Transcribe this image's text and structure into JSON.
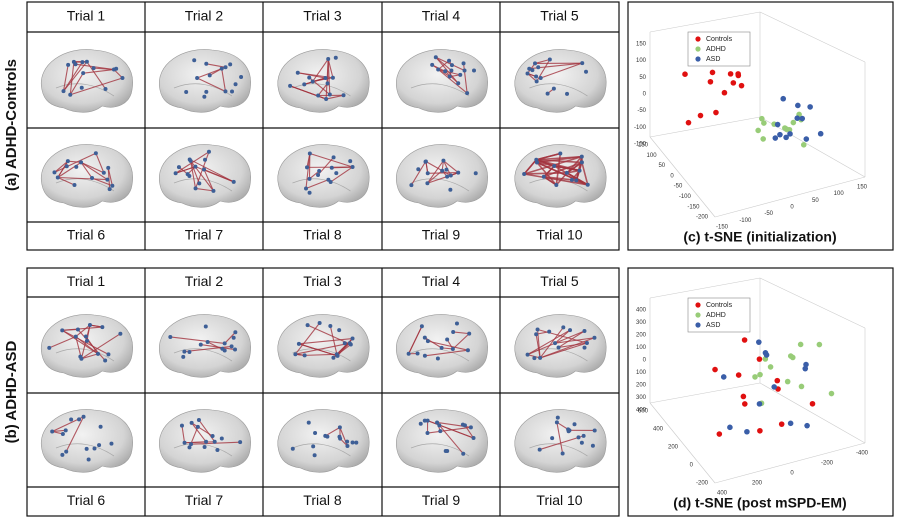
{
  "panels": [
    {
      "label": "(a) ADHD-Controls",
      "top_trials": [
        "Trial 1",
        "Trial 2",
        "Trial 3",
        "Trial 4",
        "Trial 5"
      ],
      "bottom_trials": [
        "Trial 6",
        "Trial 7",
        "Trial 8",
        "Trial 9",
        "Trial 10"
      ]
    },
    {
      "label": "(b) ADHD-ASD",
      "top_trials": [
        "Trial 1",
        "Trial 2",
        "Trial 3",
        "Trial 4",
        "Trial 5"
      ],
      "bottom_trials": [
        "Trial 6",
        "Trial 7",
        "Trial 8",
        "Trial 9",
        "Trial 10"
      ]
    }
  ],
  "tsne": [
    {
      "caption": "(c) t-SNE (initialization)",
      "legend": [
        {
          "name": "Controls",
          "color": "#e01010"
        },
        {
          "name": "ADHD",
          "color": "#98cc78"
        },
        {
          "name": "ASD",
          "color": "#3a5ea8"
        }
      ],
      "z_ticks": [
        "150",
        "100",
        "50",
        "0",
        "-50",
        "-100",
        "-150"
      ],
      "left_ticks": [
        "150",
        "100",
        "50",
        "0",
        "-50",
        "-100",
        "-150",
        "-200"
      ],
      "right_ticks": [
        "-150",
        "-100",
        "-50",
        "0",
        "50",
        "100",
        "150"
      ]
    },
    {
      "caption": "(d) t-SNE (post mSPD-EM)",
      "legend": [
        {
          "name": "Controls",
          "color": "#e01010"
        },
        {
          "name": "ADHD",
          "color": "#98cc78"
        },
        {
          "name": "ASD",
          "color": "#3a5ea8"
        }
      ],
      "z_ticks": [
        "400",
        "300",
        "200",
        "100",
        "0",
        "100",
        "200",
        "300",
        "400"
      ],
      "left_ticks": [
        "600",
        "400",
        "200",
        "0",
        "-200"
      ],
      "right_ticks": [
        "400",
        "200",
        "0",
        "-200",
        "-400"
      ]
    }
  ]
}
